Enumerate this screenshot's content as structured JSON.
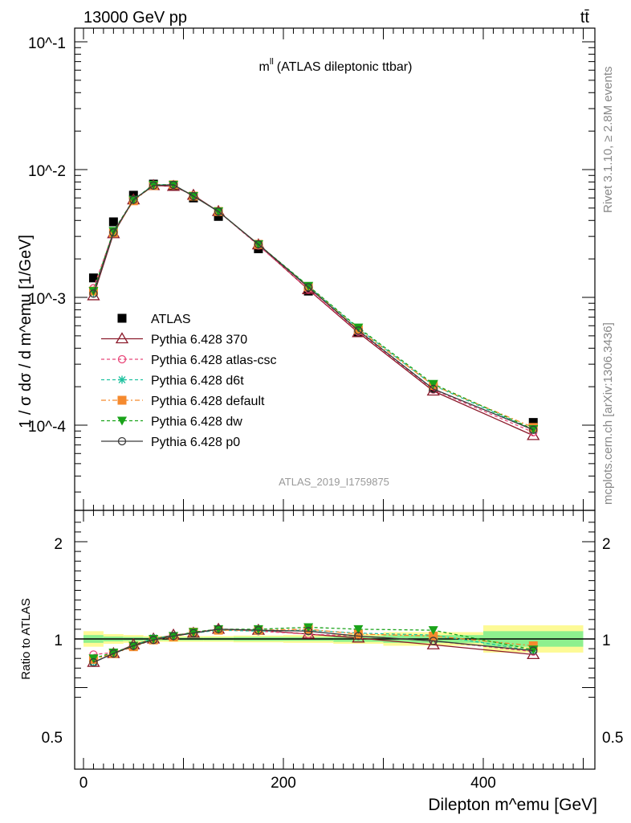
{
  "header": {
    "energy_label": "13000 GeV pp",
    "process_label": "tt̄"
  },
  "side": {
    "rivet_label": "Rivet 3.1.10, ≥ 2.8M events",
    "source_label": "mcplots.cern.ch [arXiv:1306.3436]"
  },
  "analysis_id": "ATLAS_2019_I1759875",
  "chart_data": [
    {
      "panel": "main",
      "type": "line",
      "title": "m^ll (ATLAS dileptonic ttbar)",
      "title_main": "m",
      "title_sup": "ll",
      "title_rest": "(ATLAS dileptonic ttbar)",
      "ylabel": "1 / σ  dσ / d m^emu [1/GeV]",
      "yscale": "log",
      "ylim": [
        2.5e-05,
        0.13
      ],
      "xlim": [
        -10,
        510
      ],
      "ytick_labels": [
        "10^-4",
        "10^-3",
        "10^-2",
        "10^-1"
      ],
      "legend_position": "center-left",
      "x": [
        10,
        30,
        50,
        70,
        90,
        110,
        135,
        175,
        225,
        275,
        350,
        450
      ],
      "series": [
        {
          "name": "ATLAS",
          "color": "#000000",
          "marker": "square",
          "dash": "none",
          "values": [
            0.00142,
            0.0039,
            0.0063,
            0.0077,
            0.0074,
            0.006,
            0.0043,
            0.0024,
            0.00112,
            0.00053,
            0.000195,
            0.000105
          ]
        },
        {
          "name": "Pythia 6.428 370",
          "color": "#8b1a2b",
          "marker": "triangle-open",
          "dash": "none",
          "values": [
            0.00103,
            0.00315,
            0.0058,
            0.0075,
            0.0074,
            0.0063,
            0.0047,
            0.00258,
            0.00115,
            0.00053,
            0.000185,
            8.3e-05
          ]
        },
        {
          "name": "Pythia 6.428 atlas-csc",
          "color": "#e8487a",
          "marker": "circle-open",
          "dash": "4,3",
          "values": [
            0.00118,
            0.00325,
            0.0058,
            0.0075,
            0.0075,
            0.0062,
            0.0047,
            0.00255,
            0.00116,
            0.00054,
            0.00019,
            8.8e-05
          ]
        },
        {
          "name": "Pythia 6.428 d6t",
          "color": "#20c2a0",
          "marker": "asterisk",
          "dash": "4,3",
          "values": [
            0.00108,
            0.0032,
            0.0058,
            0.0076,
            0.0076,
            0.0062,
            0.0047,
            0.0026,
            0.00122,
            0.00057,
            0.000205,
            9.2e-05
          ]
        },
        {
          "name": "Pythia 6.428 default",
          "color": "#f58a2e",
          "marker": "square",
          "dash": "6,3,2,3",
          "values": [
            0.00112,
            0.0032,
            0.0057,
            0.0075,
            0.0076,
            0.0062,
            0.0047,
            0.0026,
            0.00121,
            0.00056,
            0.000205,
            9.6e-05
          ]
        },
        {
          "name": "Pythia 6.428 dw",
          "color": "#1aa31a",
          "marker": "triangle-down",
          "dash": "4,3",
          "values": [
            0.00112,
            0.0033,
            0.0058,
            0.0076,
            0.0076,
            0.0062,
            0.0047,
            0.0026,
            0.00123,
            0.00058,
            0.00021,
            9.3e-05
          ]
        },
        {
          "name": "Pythia 6.428 p0",
          "color": "#3a3a3a",
          "marker": "circle-open",
          "dash": "none",
          "values": [
            0.00107,
            0.00322,
            0.0058,
            0.0075,
            0.0076,
            0.0062,
            0.0047,
            0.0026,
            0.0012,
            0.00055,
            0.000192,
            9.2e-05
          ]
        }
      ]
    },
    {
      "panel": "ratio",
      "type": "line",
      "ylabel": "Ratio to ATLAS",
      "xlabel": "Dilepton m^emu [GeV]",
      "ylim": [
        0.35,
        2.3
      ],
      "xlim": [
        -10,
        510
      ],
      "ytick_labels": [
        "0.5",
        "1",
        "2"
      ],
      "xtick_labels": [
        "0",
        "200",
        "400"
      ],
      "x": [
        10,
        30,
        50,
        70,
        90,
        110,
        135,
        175,
        225,
        275,
        350,
        450
      ],
      "bin_edges": [
        0,
        20,
        40,
        60,
        80,
        100,
        120,
        150,
        200,
        250,
        300,
        400,
        500
      ],
      "band_outer": [
        0.08,
        0.05,
        0.04,
        0.03,
        0.03,
        0.03,
        0.03,
        0.035,
        0.04,
        0.05,
        0.07,
        0.14
      ],
      "band_inner": [
        0.04,
        0.025,
        0.02,
        0.015,
        0.015,
        0.015,
        0.015,
        0.02,
        0.02,
        0.03,
        0.04,
        0.08
      ],
      "series": [
        {
          "name": "Pythia 6.428 370",
          "color": "#8b1a2b",
          "marker": "triangle-open",
          "dash": "none",
          "values": [
            0.76,
            0.85,
            0.94,
            1.0,
            1.04,
            1.06,
            1.1,
            1.09,
            1.05,
            1.01,
            0.94,
            0.84
          ]
        },
        {
          "name": "Pythia 6.428 atlas-csc",
          "color": "#e8487a",
          "marker": "circle-open",
          "dash": "4,3",
          "values": [
            0.84,
            0.86,
            0.93,
            0.99,
            1.03,
            1.07,
            1.1,
            1.08,
            1.05,
            1.03,
            0.98,
            0.87
          ]
        },
        {
          "name": "Pythia 6.428 d6t",
          "color": "#20c2a0",
          "marker": "asterisk",
          "dash": "4,3",
          "values": [
            0.76,
            0.85,
            0.93,
            1.01,
            1.03,
            1.06,
            1.09,
            1.08,
            1.09,
            1.06,
            1.04,
            0.88
          ]
        },
        {
          "name": "Pythia 6.428 default",
          "color": "#f58a2e",
          "marker": "square",
          "dash": "6,3,2,3",
          "values": [
            0.79,
            0.85,
            0.92,
            0.99,
            1.02,
            1.07,
            1.09,
            1.09,
            1.1,
            1.05,
            1.03,
            0.93
          ]
        },
        {
          "name": "Pythia 6.428 dw",
          "color": "#1aa31a",
          "marker": "triangle-down",
          "dash": "4,3",
          "values": [
            0.8,
            0.86,
            0.93,
            1.0,
            1.03,
            1.07,
            1.1,
            1.1,
            1.12,
            1.1,
            1.09,
            0.89
          ]
        },
        {
          "name": "Pythia 6.428 p0",
          "color": "#3a3a3a",
          "marker": "circle-open",
          "dash": "none",
          "values": [
            0.76,
            0.85,
            0.93,
            0.99,
            1.03,
            1.06,
            1.1,
            1.09,
            1.08,
            1.03,
            0.98,
            0.88
          ]
        }
      ]
    }
  ]
}
